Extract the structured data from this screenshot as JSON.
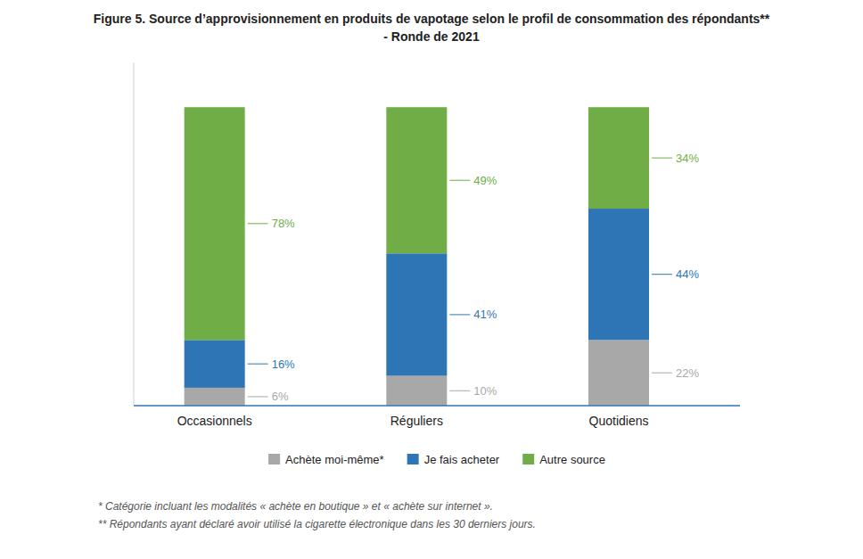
{
  "chart_data": {
    "type": "bar",
    "stacked": true,
    "title": "Figure 5. Source d’approvisionnement en produits de vapotage selon le profil de consommation des répondants**",
    "subtitle": "- Ronde de 2021",
    "categories": [
      "Occasionnels",
      "Réguliers",
      "Quotidiens"
    ],
    "series": [
      {
        "name": "Achète moi-même*",
        "color": "#a8a8a8",
        "values": [
          6,
          10,
          22
        ],
        "value_labels": [
          "6%",
          "10%",
          "22%"
        ]
      },
      {
        "name": "Je fais acheter",
        "color": "#2e75b6",
        "values": [
          16,
          41,
          44
        ],
        "value_labels": [
          "16%",
          "41%",
          "44%"
        ]
      },
      {
        "name": "Autre source",
        "color": "#70ad47",
        "values": [
          78,
          49,
          34
        ],
        "value_labels": [
          "78%",
          "49%",
          "34%"
        ]
      }
    ],
    "ylim": [
      0,
      115
    ],
    "tick_labels": "x",
    "grid": false,
    "legend": "bottom",
    "data_labels": true,
    "annotations": [
      "* Catégorie incluant les modalités « achète en boutique » et « achète sur internet ».",
      "** Répondants ayant déclaré avoir utilisé la cigarette électronique dans les 30 derniers jours."
    ]
  }
}
